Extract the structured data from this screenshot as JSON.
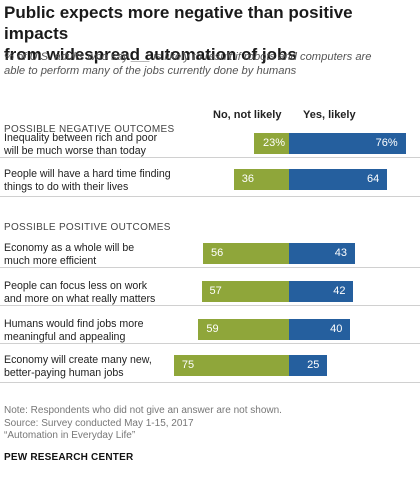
{
  "header": {
    "title_line1": "Public expects more negative than positive impacts",
    "title_line2": "from widespread automation of jobs",
    "subtitle_line1": "% of U.S. adults who say ___ is likely to result if robots and computers are",
    "subtitle_line2": "able to perform many of the jobs currently done by humans"
  },
  "colors": {
    "no": "#8fa63a",
    "yes": "#255f9e"
  },
  "chart_data": {
    "type": "bar",
    "orientation": "horizontal-diverging",
    "legend": {
      "no": "No, not likely",
      "yes": "Yes, likely"
    },
    "sections": [
      {
        "label": "POSSIBLE NEGATIVE OUTCOMES",
        "rows": [
          {
            "lines": [
              "Inequality between rich and poor",
              "will be much worse than today"
            ],
            "no": 23,
            "yes": 76,
            "no_label": "23%",
            "yes_label": "76%"
          },
          {
            "lines": [
              "People will have a hard time finding",
              "things to do with their lives"
            ],
            "no": 36,
            "yes": 64,
            "no_label": "36",
            "yes_label": "64"
          }
        ]
      },
      {
        "label": "POSSIBLE POSITIVE OUTCOMES",
        "rows": [
          {
            "lines": [
              "Economy as a whole will be",
              "much more efficient"
            ],
            "no": 56,
            "yes": 43,
            "no_label": "56",
            "yes_label": "43"
          },
          {
            "lines": [
              "People can focus less on work",
              "and more on what really matters"
            ],
            "no": 57,
            "yes": 42,
            "no_label": "57",
            "yes_label": "42"
          },
          {
            "lines": [
              "Humans would find jobs more",
              "meaningful and appealing"
            ],
            "no": 59,
            "yes": 40,
            "no_label": "59",
            "yes_label": "40"
          },
          {
            "lines": [
              "Economy will create many new,",
              "better-paying human jobs"
            ],
            "no": 75,
            "yes": 25,
            "no_label": "75",
            "yes_label": "25"
          }
        ]
      }
    ]
  },
  "footer": {
    "note": "Note: Respondents who did not give an answer are not shown.",
    "source": "Source: Survey conducted May 1-15, 2017",
    "report": "“Automation in Everyday Life”",
    "org": "PEW RESEARCH CENTER"
  }
}
